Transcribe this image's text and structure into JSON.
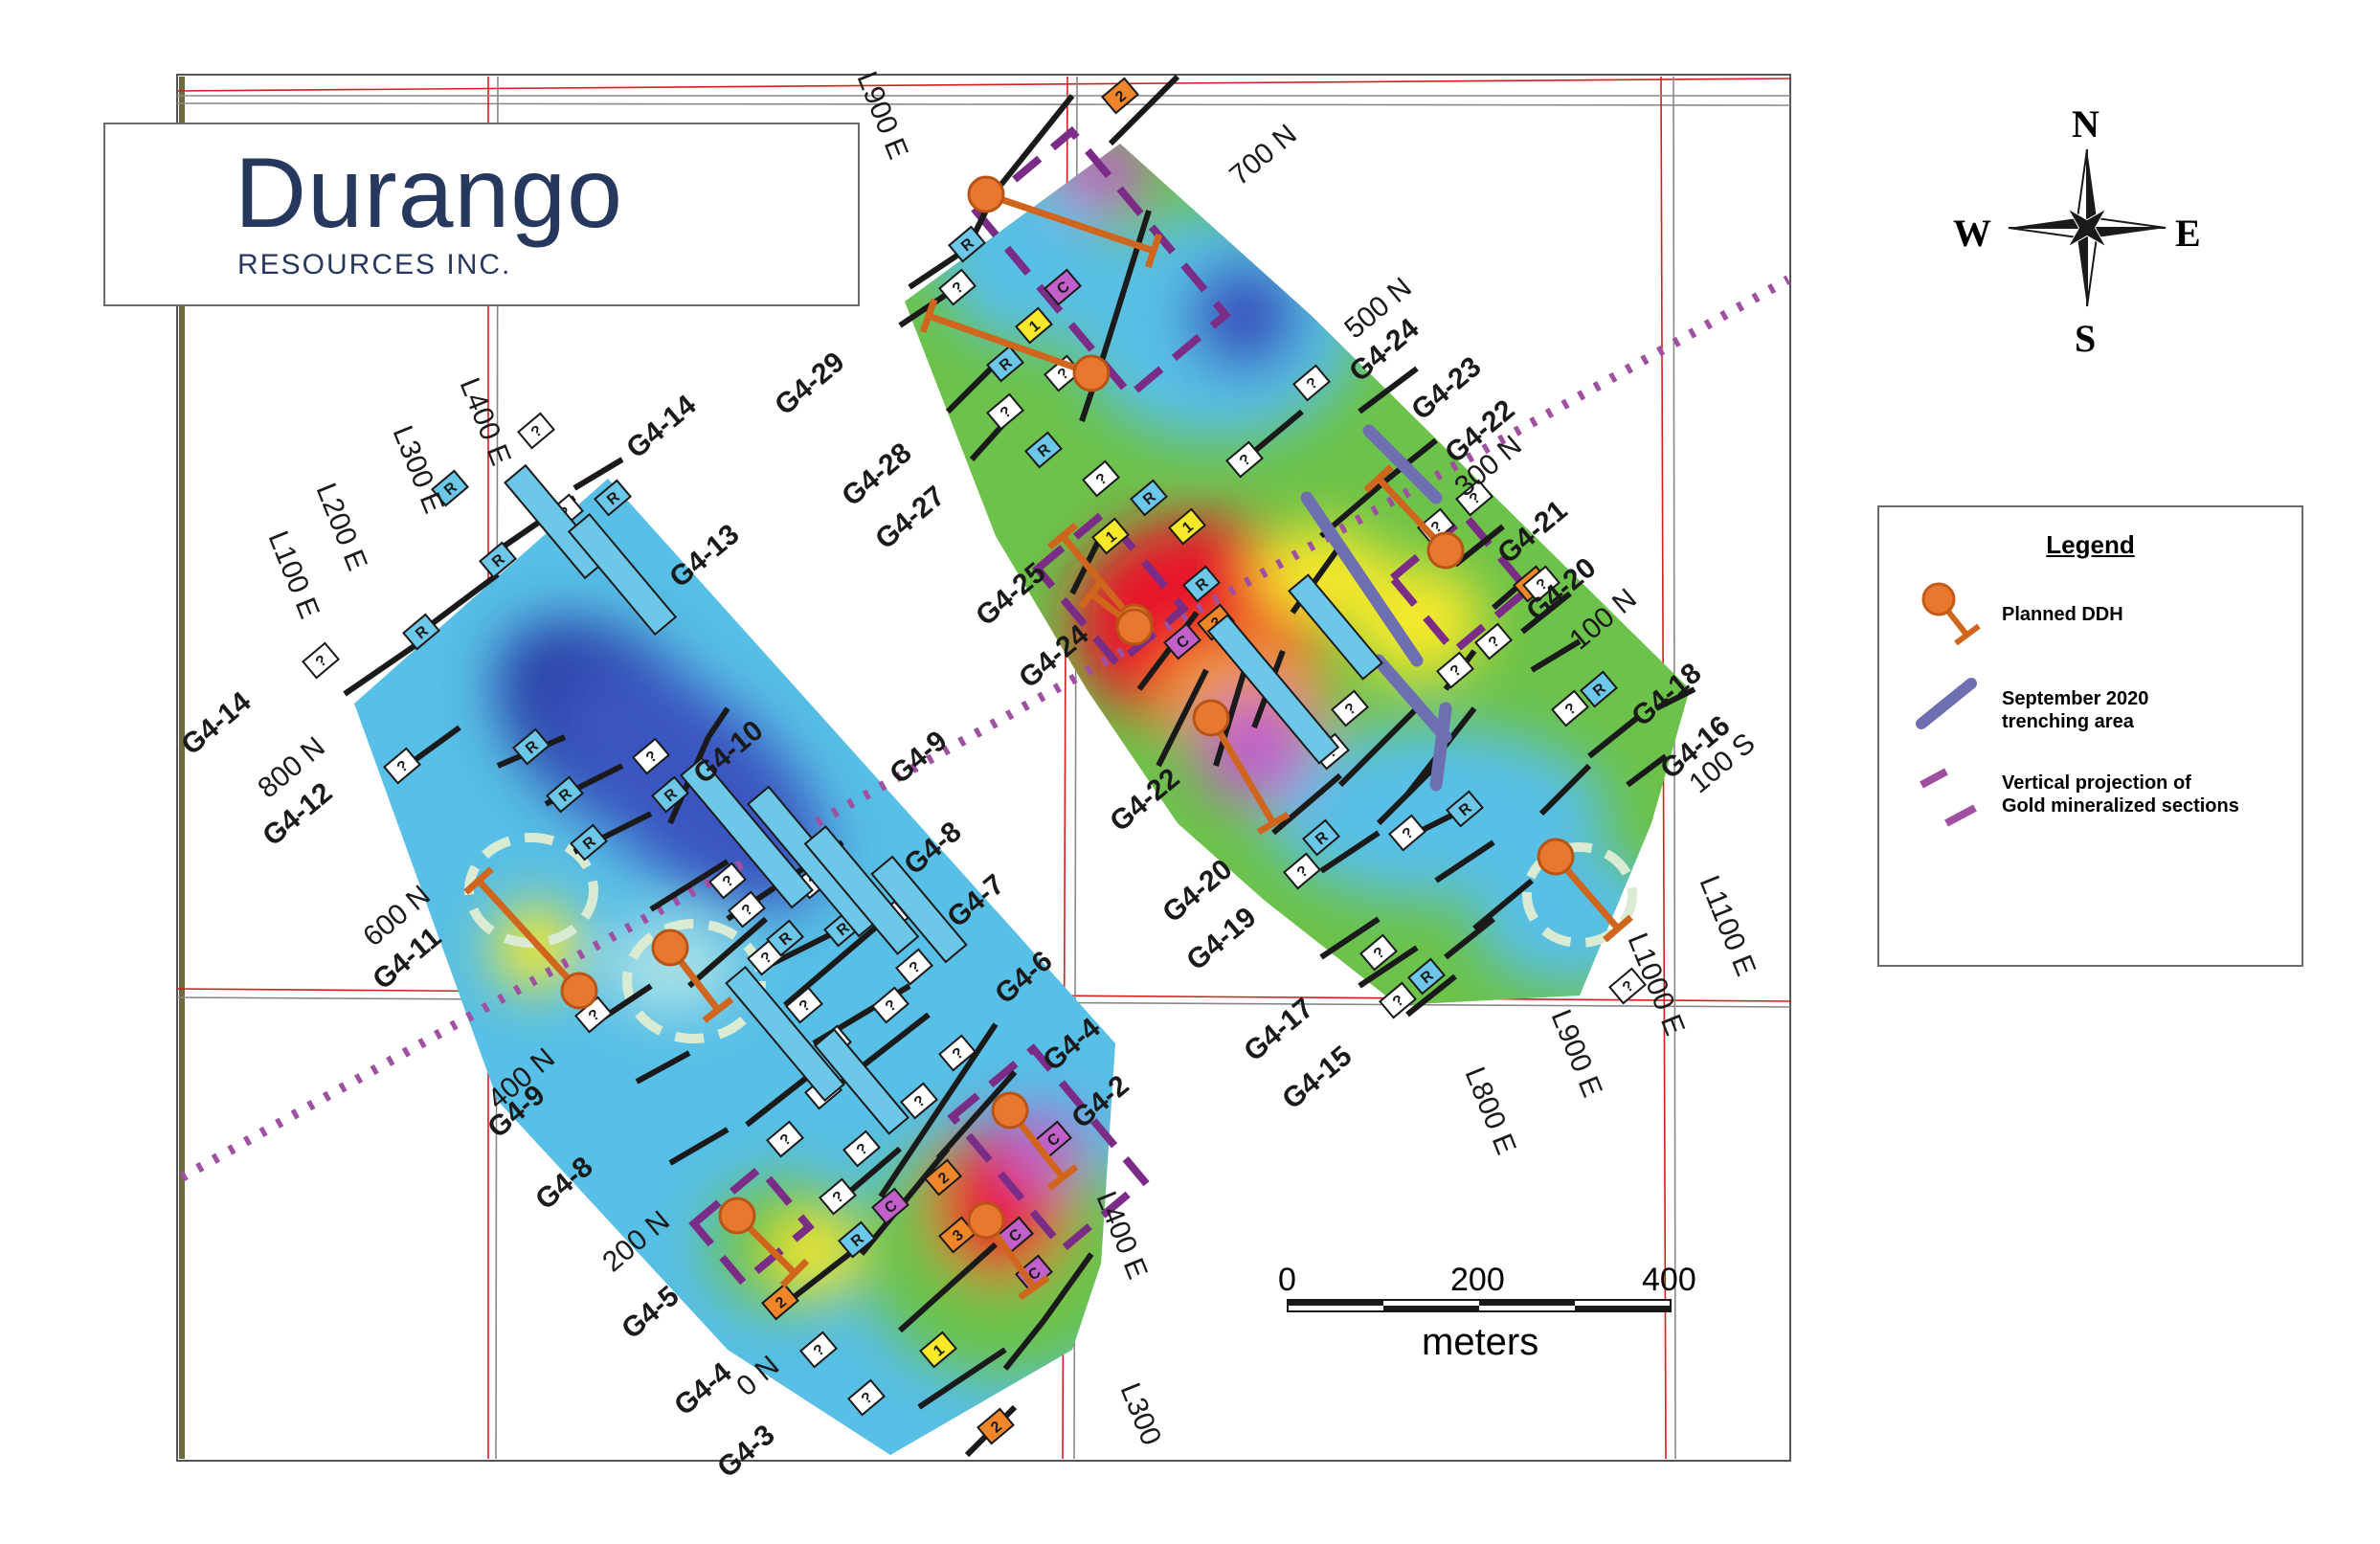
{
  "logo": {
    "name": "Durango",
    "subtitle": "RESOURCES INC."
  },
  "compass": {
    "n": "N",
    "s": "S",
    "e": "E",
    "w": "W"
  },
  "legend": {
    "title": "Legend",
    "items": [
      {
        "label": "Planned DDH",
        "symbol": "drill-hole"
      },
      {
        "label_line1": "September 2020",
        "label_line2": "trenching area",
        "symbol": "trench-bar"
      },
      {
        "label_line1": "Vertical projection of",
        "label_line2": "Gold mineralized sections",
        "symbol": "dashed-purple"
      }
    ]
  },
  "scale_bar": {
    "ticks": [
      "0",
      "200",
      "400"
    ],
    "unit": "meters"
  },
  "line_labels_east": [
    "L100 E",
    "L200 E",
    "L300 E",
    "L400 E",
    "L900 E",
    "L400 E",
    "L300",
    "L800 E",
    "L900 E",
    "L1000 E",
    "L1100 E"
  ],
  "line_labels_north": [
    "800 N",
    "600 N",
    "400 N",
    "200 N",
    "0 N",
    "700 N",
    "500 N",
    "300 N",
    "100 N",
    "100 S"
  ],
  "trench_labels": [
    "G4-14",
    "G4-14",
    "G4-13",
    "G4-12",
    "G4-10",
    "G4-11",
    "G4-9",
    "G4-9",
    "G4-8",
    "G4-8",
    "G4-7",
    "G4-6",
    "G4-5",
    "G4-4",
    "G4-4",
    "G4-3",
    "G4-2",
    "G4-29",
    "G4-28",
    "G4-27",
    "G4-25",
    "G4-24",
    "G4-22",
    "G4-24",
    "G4-23",
    "G4-22",
    "G4-21",
    "G4-20",
    "G4-18",
    "G4-16",
    "G4-20",
    "G4-19",
    "G4-17",
    "G4-15"
  ],
  "sample_codes": [
    "?",
    "R",
    "C",
    "1",
    "2",
    "3"
  ],
  "colors": {
    "frame_line": "#d21f1f",
    "grid_line": "#888888",
    "logo_text": "#27385f",
    "logo_bird": "#b8862b",
    "planned_ddh": "#e87830",
    "trench": "#6e6fb0",
    "gold_projection": "#a050a0",
    "anomaly_high": "#e8192c",
    "anomaly_mid": "#f7e92a",
    "anomaly_low": "#6cc24a",
    "background_low": "#58bfe6",
    "background_lowest": "#2a3fa6"
  }
}
